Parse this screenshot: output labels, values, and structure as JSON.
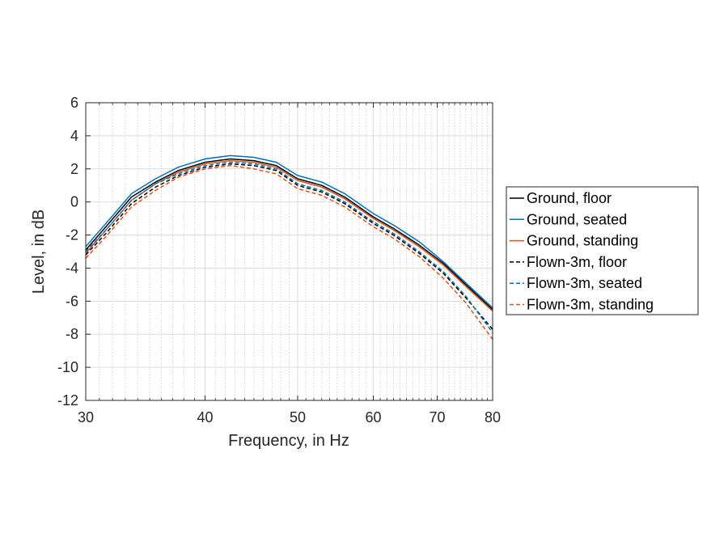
{
  "chart_data": {
    "type": "line",
    "title": "",
    "xlabel": "Frequency, in Hz",
    "ylabel": "Level, in dB",
    "x_scale": "log",
    "xlim": [
      30,
      80
    ],
    "ylim": [
      -12,
      6
    ],
    "x_ticks": [
      30,
      40,
      50,
      60,
      70,
      80
    ],
    "x_tick_labels": [
      "30",
      "40",
      "50",
      "60",
      "70",
      "80"
    ],
    "y_ticks": [
      -12,
      -10,
      -8,
      -6,
      -4,
      -2,
      0,
      2,
      4,
      6
    ],
    "y_tick_labels": [
      "-12",
      "-10",
      "-8",
      "-6",
      "-4",
      "-2",
      "0",
      "2",
      "4",
      "6"
    ],
    "grid": true,
    "legend_position": "outside-right",
    "x": [
      30,
      31.5,
      33.5,
      35.5,
      37.5,
      40,
      42.5,
      45,
      47.5,
      50,
      53,
      56,
      60,
      63,
      67,
      71,
      75,
      80
    ],
    "series": [
      {
        "name": "Ground, floor",
        "color": "#000000",
        "dash": "solid",
        "values": [
          -2.9,
          -1.5,
          0.3,
          1.2,
          1.9,
          2.4,
          2.6,
          2.5,
          2.2,
          1.4,
          1.0,
          0.3,
          -0.9,
          -1.6,
          -2.6,
          -3.7,
          -5.0,
          -6.5
        ]
      },
      {
        "name": "Ground, seated",
        "color": "#0072BD",
        "dash": "solid",
        "values": [
          -2.7,
          -1.3,
          0.5,
          1.4,
          2.1,
          2.6,
          2.8,
          2.7,
          2.4,
          1.6,
          1.2,
          0.5,
          -0.7,
          -1.4,
          -2.4,
          -3.6,
          -4.9,
          -6.4
        ]
      },
      {
        "name": "Ground, standing",
        "color": "#D95319",
        "dash": "solid",
        "values": [
          -3.1,
          -1.7,
          0.1,
          1.1,
          1.8,
          2.3,
          2.5,
          2.4,
          2.1,
          1.3,
          0.9,
          0.2,
          -1.0,
          -1.7,
          -2.7,
          -3.8,
          -5.1,
          -6.6
        ]
      },
      {
        "name": "Flown-3m, floor",
        "color": "#000000",
        "dash": "dashed",
        "values": [
          -3.2,
          -1.9,
          -0.1,
          0.9,
          1.6,
          2.1,
          2.3,
          2.2,
          1.9,
          1.0,
          0.6,
          -0.1,
          -1.3,
          -2.0,
          -3.1,
          -4.3,
          -5.8,
          -7.7
        ]
      },
      {
        "name": "Flown-3m, seated",
        "color": "#0072BD",
        "dash": "dashed",
        "values": [
          -3.0,
          -1.7,
          0.1,
          1.1,
          1.7,
          2.2,
          2.4,
          2.3,
          2.0,
          1.1,
          0.7,
          0.0,
          -1.2,
          -1.9,
          -3.0,
          -4.2,
          -5.7,
          -7.9
        ]
      },
      {
        "name": "Flown-3m, standing",
        "color": "#D95319",
        "dash": "dashed",
        "values": [
          -3.4,
          -2.1,
          -0.3,
          0.7,
          1.5,
          2.0,
          2.2,
          2.0,
          1.7,
          0.8,
          0.4,
          -0.3,
          -1.5,
          -2.2,
          -3.3,
          -4.6,
          -6.1,
          -8.3
        ]
      }
    ]
  }
}
